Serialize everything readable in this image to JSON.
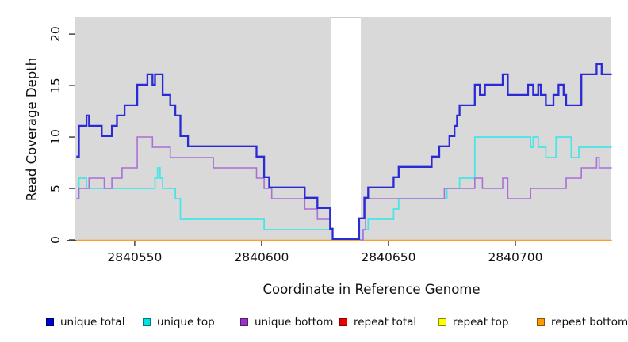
{
  "chart_data": {
    "type": "line",
    "subtype": "step",
    "title": "",
    "xlabel": "Coordinate in Reference Genome",
    "ylabel": "Read Coverage Depth",
    "xlim": [
      2840526.6,
      2840737.5
    ],
    "ylim": [
      0,
      21.7
    ],
    "xticks": [
      2840550,
      2840600,
      2840650,
      2840700
    ],
    "yticks": [
      0,
      5,
      10,
      15,
      20
    ],
    "grid": false,
    "panel_background": "#d9d9d9",
    "gap_region": {
      "from": 2840627.2,
      "to": 2840639.1,
      "color": "#ffffff"
    },
    "legend_position": "bottom",
    "legend": [
      {
        "label": "unique total",
        "color": "#0000d0"
      },
      {
        "label": "unique top",
        "color": "#00e0e6"
      },
      {
        "label": "unique bottom",
        "color": "#9932cc"
      },
      {
        "label": "repeat total",
        "color": "#ee0000"
      },
      {
        "label": "repeat top",
        "color": "#ffff00"
      },
      {
        "label": "repeat bottom",
        "color": "#ff9900"
      }
    ],
    "series": [
      {
        "name": "repeat total",
        "color": "#ee1111",
        "width": 1.5,
        "yoffset": 0.8,
        "segments": [
          {
            "steps": [
              [
                2840527,
                0
              ]
            ],
            "end": 2840738
          }
        ]
      },
      {
        "name": "repeat top",
        "color": "#ffee22",
        "width": 1.5,
        "yoffset": 0.8,
        "segments": [
          {
            "steps": [
              [
                2840527,
                0
              ]
            ],
            "end": 2840738
          }
        ]
      },
      {
        "name": "repeat bottom",
        "color": "#ff9d1e",
        "width": 2.1,
        "yoffset": 0.8,
        "segments": [
          {
            "steps": [
              [
                2840527,
                0
              ]
            ],
            "end": 2840738
          }
        ]
      },
      {
        "name": "unique top",
        "color": "#45e5e8",
        "width": 1.7,
        "yoffset": 0,
        "segments": [
          {
            "steps": [
              [
                2840527,
                4
              ],
              [
                2840528,
                6
              ],
              [
                2840531,
                5
              ],
              [
                2840558,
                6
              ],
              [
                2840559,
                7
              ],
              [
                2840560,
                6
              ],
              [
                2840561,
                5
              ],
              [
                2840566,
                4
              ],
              [
                2840568,
                2
              ],
              [
                2840601,
                1
              ]
            ],
            "end": 2840627.2
          },
          {
            "steps": [
              [
                2840639,
                0
              ],
              [
                2840640,
                1
              ],
              [
                2840642,
                2
              ],
              [
                2840652,
                3
              ],
              [
                2840654,
                4
              ],
              [
                2840673,
                5
              ],
              [
                2840678,
                6
              ],
              [
                2840684,
                10
              ],
              [
                2840706,
                9
              ],
              [
                2840707,
                10
              ],
              [
                2840709,
                9
              ],
              [
                2840712,
                8
              ],
              [
                2840716,
                10
              ],
              [
                2840722,
                8
              ],
              [
                2840725,
                9
              ]
            ],
            "end": 2840738
          }
        ]
      },
      {
        "name": "unique bottom",
        "color": "#ab6fd8",
        "width": 1.6,
        "yoffset": 0,
        "segments": [
          {
            "steps": [
              [
                2840527,
                4
              ],
              [
                2840528,
                5
              ],
              [
                2840532,
                6
              ],
              [
                2840538,
                5
              ],
              [
                2840541,
                6
              ],
              [
                2840545,
                7
              ],
              [
                2840551,
                10
              ],
              [
                2840557,
                9
              ],
              [
                2840564,
                8
              ],
              [
                2840581,
                7
              ],
              [
                2840598,
                6
              ],
              [
                2840601,
                5
              ],
              [
                2840604,
                4
              ],
              [
                2840617,
                3
              ],
              [
                2840622,
                2
              ]
            ],
            "end": 2840627.2
          },
          {
            "steps": [
              [
                2840639,
                0
              ],
              [
                2840640,
                1
              ],
              [
                2840641,
                4
              ],
              [
                2840672,
                5
              ],
              [
                2840684,
                6
              ],
              [
                2840687,
                5
              ],
              [
                2840695,
                6
              ],
              [
                2840697,
                4
              ],
              [
                2840706,
                5
              ],
              [
                2840720,
                6
              ],
              [
                2840726,
                7
              ],
              [
                2840732,
                8
              ],
              [
                2840733,
                7
              ]
            ],
            "end": 2840738
          }
        ]
      },
      {
        "name": "unique total",
        "color": "#2a2ad6",
        "width": 2.3,
        "yoffset": -1.2,
        "segments": [
          {
            "steps": [
              [
                2840527,
                8
              ],
              [
                2840528,
                11
              ],
              [
                2840531,
                12
              ],
              [
                2840532,
                11
              ],
              [
                2840537,
                10
              ],
              [
                2840541,
                11
              ],
              [
                2840543,
                12
              ],
              [
                2840546,
                13
              ],
              [
                2840551,
                15
              ],
              [
                2840555,
                16
              ],
              [
                2840557,
                15
              ],
              [
                2840558,
                16
              ],
              [
                2840561,
                14
              ],
              [
                2840564,
                13
              ],
              [
                2840566,
                12
              ],
              [
                2840568,
                10
              ],
              [
                2840571,
                9
              ],
              [
                2840598,
                8
              ],
              [
                2840601,
                6
              ],
              [
                2840603,
                5
              ],
              [
                2840617,
                4
              ],
              [
                2840622,
                3
              ],
              [
                2840627,
                1
              ],
              [
                2840628,
                0
              ],
              [
                2840638.5,
                2
              ],
              [
                2840640.5,
                4
              ],
              [
                2840642,
                5
              ],
              [
                2840652,
                6
              ],
              [
                2840654,
                7
              ],
              [
                2840667,
                8
              ],
              [
                2840670,
                9
              ],
              [
                2840674,
                10
              ],
              [
                2840676,
                11
              ],
              [
                2840677,
                12
              ],
              [
                2840678,
                13
              ],
              [
                2840684,
                15
              ],
              [
                2840686,
                14
              ],
              [
                2840688,
                15
              ],
              [
                2840695,
                16
              ],
              [
                2840697,
                14
              ],
              [
                2840705,
                15
              ],
              [
                2840707,
                14
              ],
              [
                2840709,
                15
              ],
              [
                2840710,
                14
              ],
              [
                2840712,
                13
              ],
              [
                2840715,
                14
              ],
              [
                2840717,
                15
              ],
              [
                2840719,
                14
              ],
              [
                2840720,
                13
              ],
              [
                2840726,
                16
              ],
              [
                2840732,
                17
              ],
              [
                2840734,
                16
              ]
            ],
            "end": 2840738
          }
        ]
      }
    ]
  },
  "labels": {
    "xlabel": "Coordinate in Reference Genome",
    "ylabel": "Read Coverage Depth"
  }
}
